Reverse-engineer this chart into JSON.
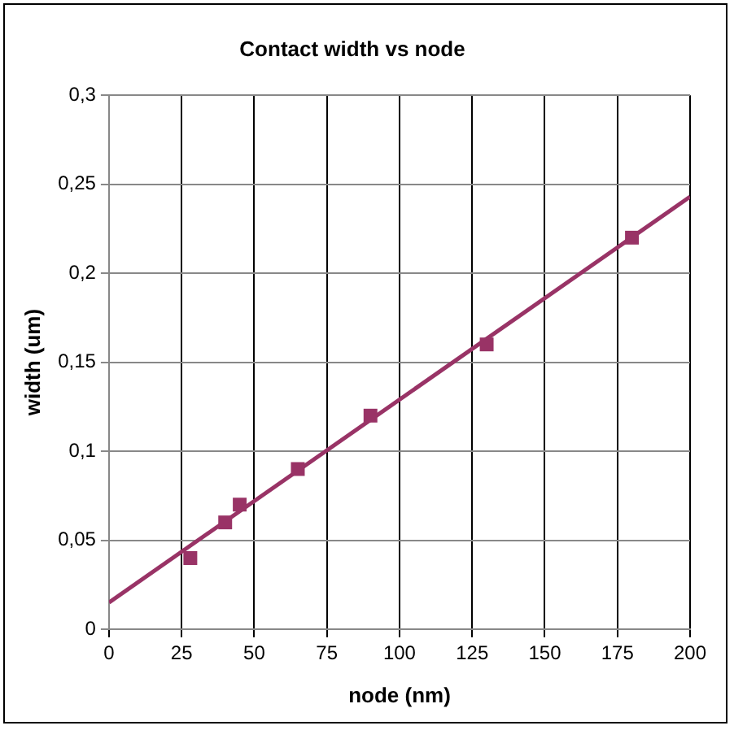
{
  "chart_data": {
    "type": "scatter",
    "title": "Contact width vs node",
    "xlabel": "node (nm)",
    "ylabel": "width (um)",
    "xlim": [
      0,
      200
    ],
    "xticks": [
      0,
      25,
      50,
      75,
      100,
      125,
      150,
      175,
      200
    ],
    "ylim": [
      0,
      0.3
    ],
    "yticks": [
      0,
      {
        "value": 0.05,
        "label": "0,05"
      },
      {
        "value": 0.1,
        "label": "0,1"
      },
      {
        "value": 0.15,
        "label": "0,15"
      },
      {
        "value": 0.2,
        "label": "0,2"
      },
      {
        "value": 0.25,
        "label": "0,25"
      },
      {
        "value": 0.3,
        "label": "0,3"
      }
    ],
    "grid": true,
    "legend": false,
    "marker": "square",
    "series": [
      {
        "type": "scatter",
        "color": "#993366",
        "x": [
          28,
          40,
          45,
          65,
          90,
          130,
          180
        ],
        "values": [
          0.04,
          0.06,
          0.07,
          0.09,
          0.12,
          0.16,
          0.22
        ]
      },
      {
        "type": "line",
        "color": "#993366",
        "x": [
          0,
          200
        ],
        "values": [
          0.015,
          0.243
        ],
        "marker": "none",
        "line_style": "solid"
      }
    ]
  }
}
